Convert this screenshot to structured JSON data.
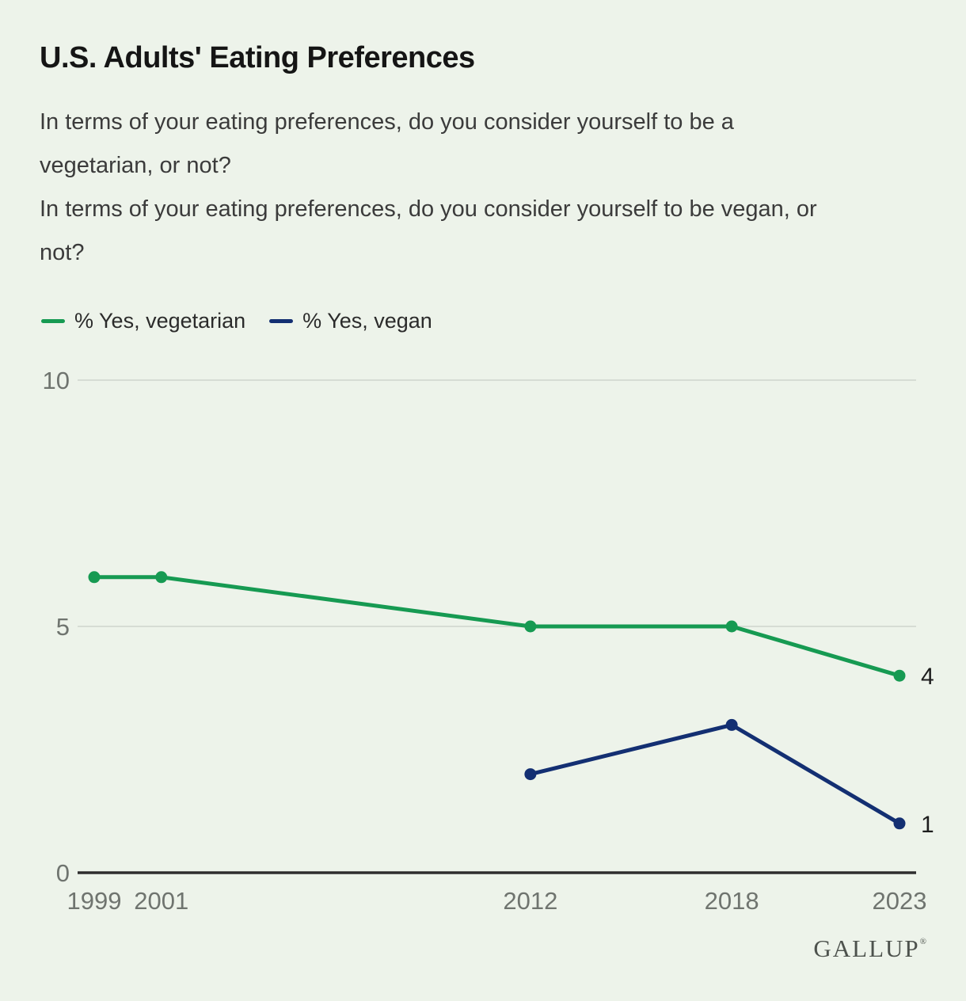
{
  "page": {
    "background_color": "#edf3ea"
  },
  "header": {
    "title": "U.S. Adults' Eating Preferences",
    "question_lines": [
      "In terms of your eating preferences, do you consider yourself to be a",
      "vegetarian, or not?",
      "In terms of your eating preferences, do you consider yourself to be vegan, or",
      "not?"
    ]
  },
  "legend": {
    "items": [
      {
        "label": "% Yes, vegetarian",
        "color": "#169a52"
      },
      {
        "label": "% Yes, vegan",
        "color": "#132f72"
      }
    ]
  },
  "chart_data": {
    "type": "line",
    "title": "U.S. Adults' Eating Preferences",
    "xlabel": "",
    "ylabel": "",
    "xlim": [
      1999,
      2023
    ],
    "ylim": [
      0,
      10
    ],
    "x_ticks": [
      1999,
      2001,
      2012,
      2018,
      2023
    ],
    "y_ticks": [
      0,
      5,
      10
    ],
    "grid": "horizontal gridlines at y=5 and y=10; dark baseline at y=0",
    "legend_position": "top-left",
    "series": [
      {
        "name": "% Yes, vegetarian",
        "color": "#169a52",
        "points": [
          {
            "x": 1999,
            "y": 6
          },
          {
            "x": 2001,
            "y": 6
          },
          {
            "x": 2012,
            "y": 5
          },
          {
            "x": 2018,
            "y": 5
          },
          {
            "x": 2023,
            "y": 4
          }
        ],
        "end_label": "4"
      },
      {
        "name": "% Yes, vegan",
        "color": "#132f72",
        "points": [
          {
            "x": 2012,
            "y": 2
          },
          {
            "x": 2018,
            "y": 3
          },
          {
            "x": 2023,
            "y": 1
          }
        ],
        "end_label": "1"
      }
    ],
    "colors": {
      "grid": "#d6dcd4",
      "axis": "#2e2e2e",
      "tick_label": "#6f746f",
      "end_label": "#1d1d1d"
    }
  },
  "footer": {
    "logo": "GALLUP",
    "registered_mark": "®"
  }
}
